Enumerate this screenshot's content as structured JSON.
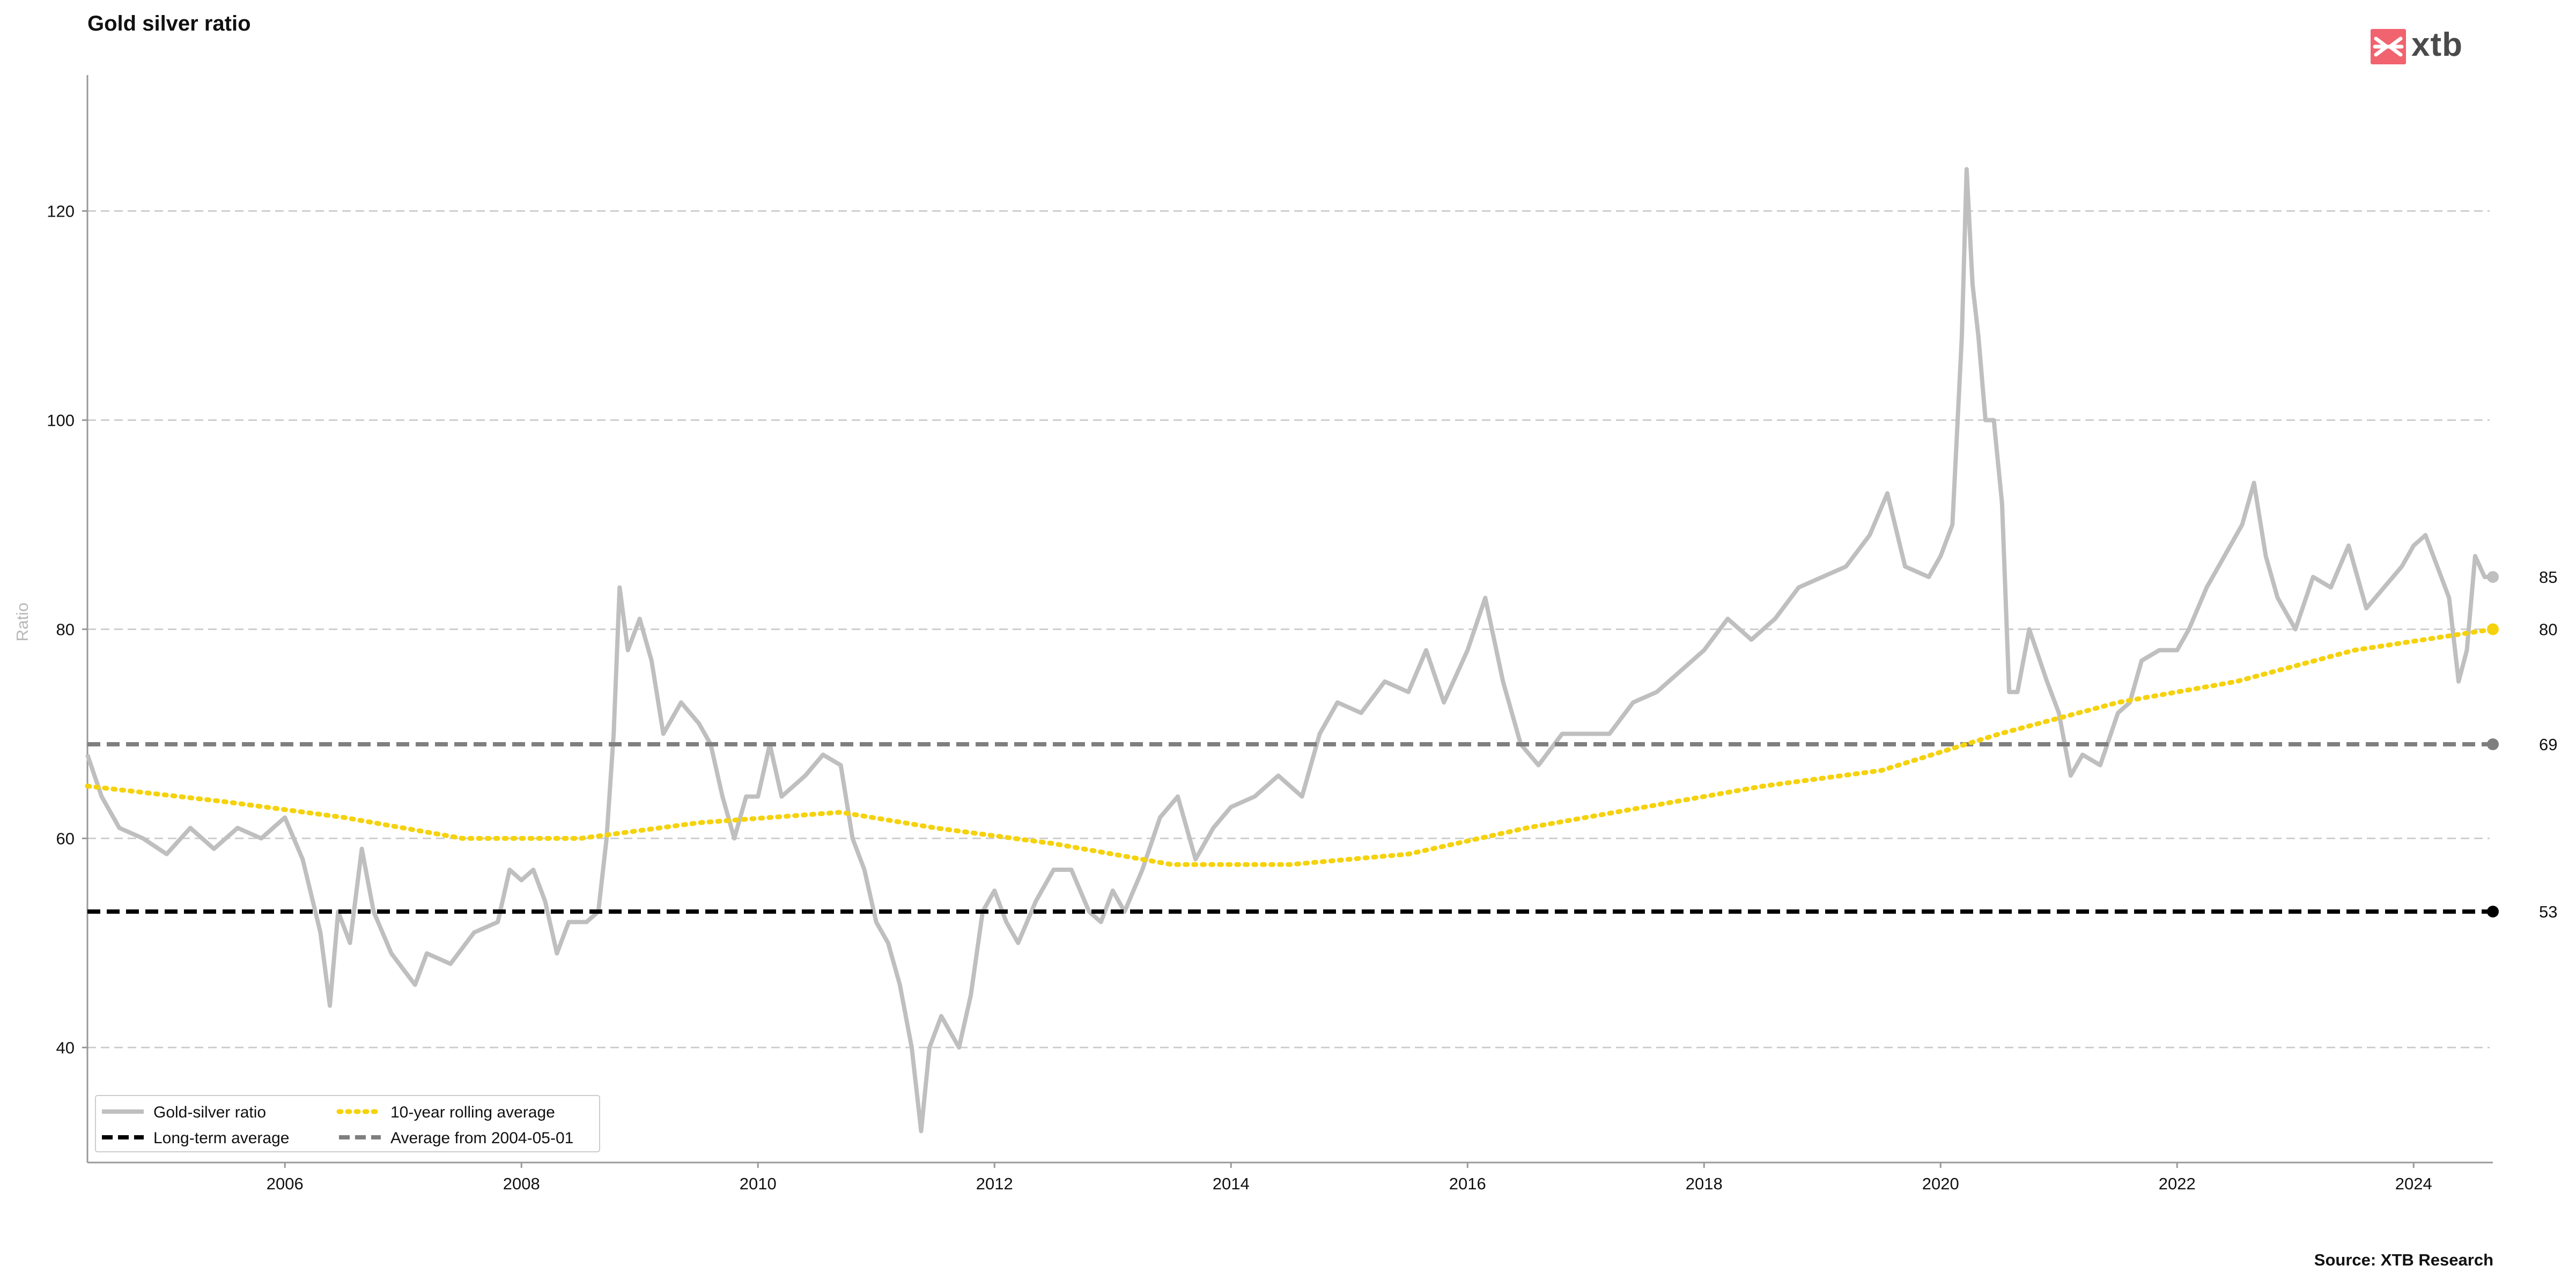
{
  "title": "Gold silver ratio",
  "source": "Source: XTB Research",
  "logo": {
    "text": "xtb",
    "color": "#f0636f"
  },
  "chart_data": {
    "type": "line",
    "title": "Gold silver ratio",
    "xlabel": "",
    "ylabel": "Ratio",
    "xlim": [
      2004.33,
      2024.67
    ],
    "ylim": [
      29,
      133
    ],
    "grid": "horizontal dashed",
    "legend_position": "bottom-left",
    "x_ticks": [
      "2006",
      "2008",
      "2010",
      "2012",
      "2014",
      "2016",
      "2018",
      "2020",
      "2022",
      "2024"
    ],
    "y_ticks": [
      "40",
      "60",
      "80",
      "100",
      "120"
    ],
    "series": [
      {
        "name": "Gold-silver ratio",
        "style": "solid",
        "color": "#bfbfbf",
        "end_label": "85",
        "points": [
          [
            2004.33,
            68
          ],
          [
            2004.45,
            64
          ],
          [
            2004.6,
            61
          ],
          [
            2004.8,
            60
          ],
          [
            2005.0,
            58.5
          ],
          [
            2005.2,
            61
          ],
          [
            2005.4,
            59
          ],
          [
            2005.6,
            61
          ],
          [
            2005.8,
            60
          ],
          [
            2006.0,
            62
          ],
          [
            2006.15,
            58
          ],
          [
            2006.3,
            51
          ],
          [
            2006.38,
            44
          ],
          [
            2006.45,
            53
          ],
          [
            2006.55,
            50
          ],
          [
            2006.65,
            59
          ],
          [
            2006.75,
            53
          ],
          [
            2006.9,
            49
          ],
          [
            2007.0,
            47.5
          ],
          [
            2007.1,
            46
          ],
          [
            2007.2,
            49
          ],
          [
            2007.4,
            48
          ],
          [
            2007.6,
            51
          ],
          [
            2007.8,
            52
          ],
          [
            2007.9,
            57
          ],
          [
            2008.0,
            56
          ],
          [
            2008.1,
            57
          ],
          [
            2008.2,
            54
          ],
          [
            2008.3,
            49
          ],
          [
            2008.4,
            52
          ],
          [
            2008.55,
            52
          ],
          [
            2008.65,
            53
          ],
          [
            2008.72,
            60
          ],
          [
            2008.78,
            70
          ],
          [
            2008.83,
            84
          ],
          [
            2008.9,
            78
          ],
          [
            2009.0,
            81
          ],
          [
            2009.1,
            77
          ],
          [
            2009.2,
            70
          ],
          [
            2009.35,
            73
          ],
          [
            2009.5,
            71
          ],
          [
            2009.6,
            69
          ],
          [
            2009.7,
            64
          ],
          [
            2009.8,
            60
          ],
          [
            2009.9,
            64
          ],
          [
            2010.0,
            64
          ],
          [
            2010.1,
            69
          ],
          [
            2010.2,
            64
          ],
          [
            2010.4,
            66
          ],
          [
            2010.55,
            68
          ],
          [
            2010.7,
            67
          ],
          [
            2010.8,
            60
          ],
          [
            2010.9,
            57
          ],
          [
            2011.0,
            52
          ],
          [
            2011.1,
            50
          ],
          [
            2011.2,
            46
          ],
          [
            2011.3,
            40
          ],
          [
            2011.38,
            32
          ],
          [
            2011.45,
            40
          ],
          [
            2011.55,
            43
          ],
          [
            2011.7,
            40
          ],
          [
            2011.8,
            45
          ],
          [
            2011.9,
            53
          ],
          [
            2012.0,
            55
          ],
          [
            2012.1,
            52
          ],
          [
            2012.2,
            50
          ],
          [
            2012.35,
            54
          ],
          [
            2012.5,
            57
          ],
          [
            2012.65,
            57
          ],
          [
            2012.8,
            53
          ],
          [
            2012.9,
            52
          ],
          [
            2013.0,
            55
          ],
          [
            2013.1,
            53
          ],
          [
            2013.25,
            57
          ],
          [
            2013.4,
            62
          ],
          [
            2013.55,
            64
          ],
          [
            2013.7,
            58
          ],
          [
            2013.85,
            61
          ],
          [
            2014.0,
            63
          ],
          [
            2014.2,
            64
          ],
          [
            2014.4,
            66
          ],
          [
            2014.6,
            64
          ],
          [
            2014.75,
            70
          ],
          [
            2014.9,
            73
          ],
          [
            2015.1,
            72
          ],
          [
            2015.3,
            75
          ],
          [
            2015.5,
            74
          ],
          [
            2015.65,
            78
          ],
          [
            2015.8,
            73
          ],
          [
            2016.0,
            78
          ],
          [
            2016.15,
            83
          ],
          [
            2016.3,
            75
          ],
          [
            2016.45,
            69
          ],
          [
            2016.6,
            67
          ],
          [
            2016.8,
            70
          ],
          [
            2017.0,
            70
          ],
          [
            2017.2,
            70
          ],
          [
            2017.4,
            73
          ],
          [
            2017.6,
            74
          ],
          [
            2017.8,
            76
          ],
          [
            2018.0,
            78
          ],
          [
            2018.2,
            81
          ],
          [
            2018.4,
            79
          ],
          [
            2018.6,
            81
          ],
          [
            2018.8,
            84
          ],
          [
            2019.0,
            85
          ],
          [
            2019.2,
            86
          ],
          [
            2019.4,
            89
          ],
          [
            2019.55,
            93
          ],
          [
            2019.7,
            86
          ],
          [
            2019.9,
            85
          ],
          [
            2020.0,
            87
          ],
          [
            2020.1,
            90
          ],
          [
            2020.18,
            108
          ],
          [
            2020.22,
            124
          ],
          [
            2020.27,
            113
          ],
          [
            2020.32,
            108
          ],
          [
            2020.38,
            100
          ],
          [
            2020.45,
            100
          ],
          [
            2020.52,
            92
          ],
          [
            2020.58,
            74
          ],
          [
            2020.65,
            74
          ],
          [
            2020.75,
            80
          ],
          [
            2020.9,
            75
          ],
          [
            2021.0,
            72
          ],
          [
            2021.1,
            66
          ],
          [
            2021.2,
            68
          ],
          [
            2021.35,
            67
          ],
          [
            2021.5,
            72
          ],
          [
            2021.6,
            73
          ],
          [
            2021.7,
            77
          ],
          [
            2021.85,
            78
          ],
          [
            2022.0,
            78
          ],
          [
            2022.1,
            80
          ],
          [
            2022.25,
            84
          ],
          [
            2022.4,
            87
          ],
          [
            2022.55,
            90
          ],
          [
            2022.65,
            94
          ],
          [
            2022.75,
            87
          ],
          [
            2022.85,
            83
          ],
          [
            2023.0,
            80
          ],
          [
            2023.15,
            85
          ],
          [
            2023.3,
            84
          ],
          [
            2023.45,
            88
          ],
          [
            2023.6,
            82
          ],
          [
            2023.75,
            84
          ],
          [
            2023.9,
            86
          ],
          [
            2024.0,
            88
          ],
          [
            2024.1,
            89
          ],
          [
            2024.2,
            86
          ],
          [
            2024.3,
            83
          ],
          [
            2024.38,
            75
          ],
          [
            2024.45,
            78
          ],
          [
            2024.52,
            87
          ],
          [
            2024.6,
            85
          ],
          [
            2024.67,
            85
          ]
        ]
      },
      {
        "name": "Long-term average",
        "style": "dashed",
        "color": "#000000",
        "value": 53,
        "end_label": "53"
      },
      {
        "name": "10-year rolling average",
        "style": "dotted",
        "color": "#f5d20c",
        "end_label": "80",
        "points": [
          [
            2004.33,
            65
          ],
          [
            2005.5,
            63.5
          ],
          [
            2006.5,
            62
          ],
          [
            2007.5,
            60
          ],
          [
            2008.5,
            60
          ],
          [
            2009.5,
            61.5
          ],
          [
            2010.7,
            62.5
          ],
          [
            2011.5,
            61
          ],
          [
            2012.5,
            59.5
          ],
          [
            2013.5,
            57.5
          ],
          [
            2014.5,
            57.5
          ],
          [
            2015.5,
            58.5
          ],
          [
            2016.5,
            61
          ],
          [
            2017.5,
            63
          ],
          [
            2018.5,
            65
          ],
          [
            2019.5,
            66.5
          ],
          [
            2020.5,
            70
          ],
          [
            2021.5,
            73
          ],
          [
            2022.5,
            75
          ],
          [
            2023.5,
            78
          ],
          [
            2024.67,
            80
          ]
        ]
      },
      {
        "name": "Average from 2004-05-01",
        "style": "dashed",
        "color": "#7f7f7f",
        "value": 69,
        "end_label": "69"
      }
    ]
  }
}
